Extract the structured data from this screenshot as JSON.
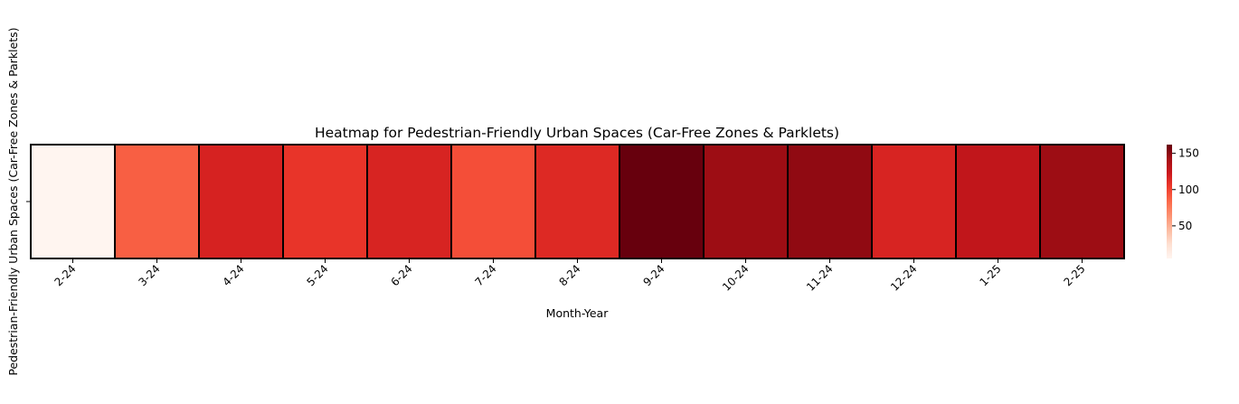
{
  "chart_data": {
    "type": "heatmap",
    "title": "Heatmap for Pedestrian-Friendly Urban Spaces (Car-Free Zones & Parklets)",
    "xlabel": "Month-Year",
    "ylabel": "Pedestrian-Friendly Urban Spaces (Car-Free Zones & Parklets)",
    "categories": [
      "2-24",
      "3-24",
      "4-24",
      "5-24",
      "6-24",
      "7-24",
      "8-24",
      "9-24",
      "10-24",
      "11-24",
      "12-24",
      "1-25",
      "2-25"
    ],
    "values": [
      5,
      88,
      117,
      107,
      116,
      95,
      113,
      162,
      145,
      149,
      116,
      128,
      145
    ],
    "colorbar": {
      "min": 5,
      "max": 162,
      "ticks": [
        50,
        100,
        150
      ],
      "colormap": "Reds"
    },
    "grid": false,
    "legend": "colorbar-right"
  }
}
